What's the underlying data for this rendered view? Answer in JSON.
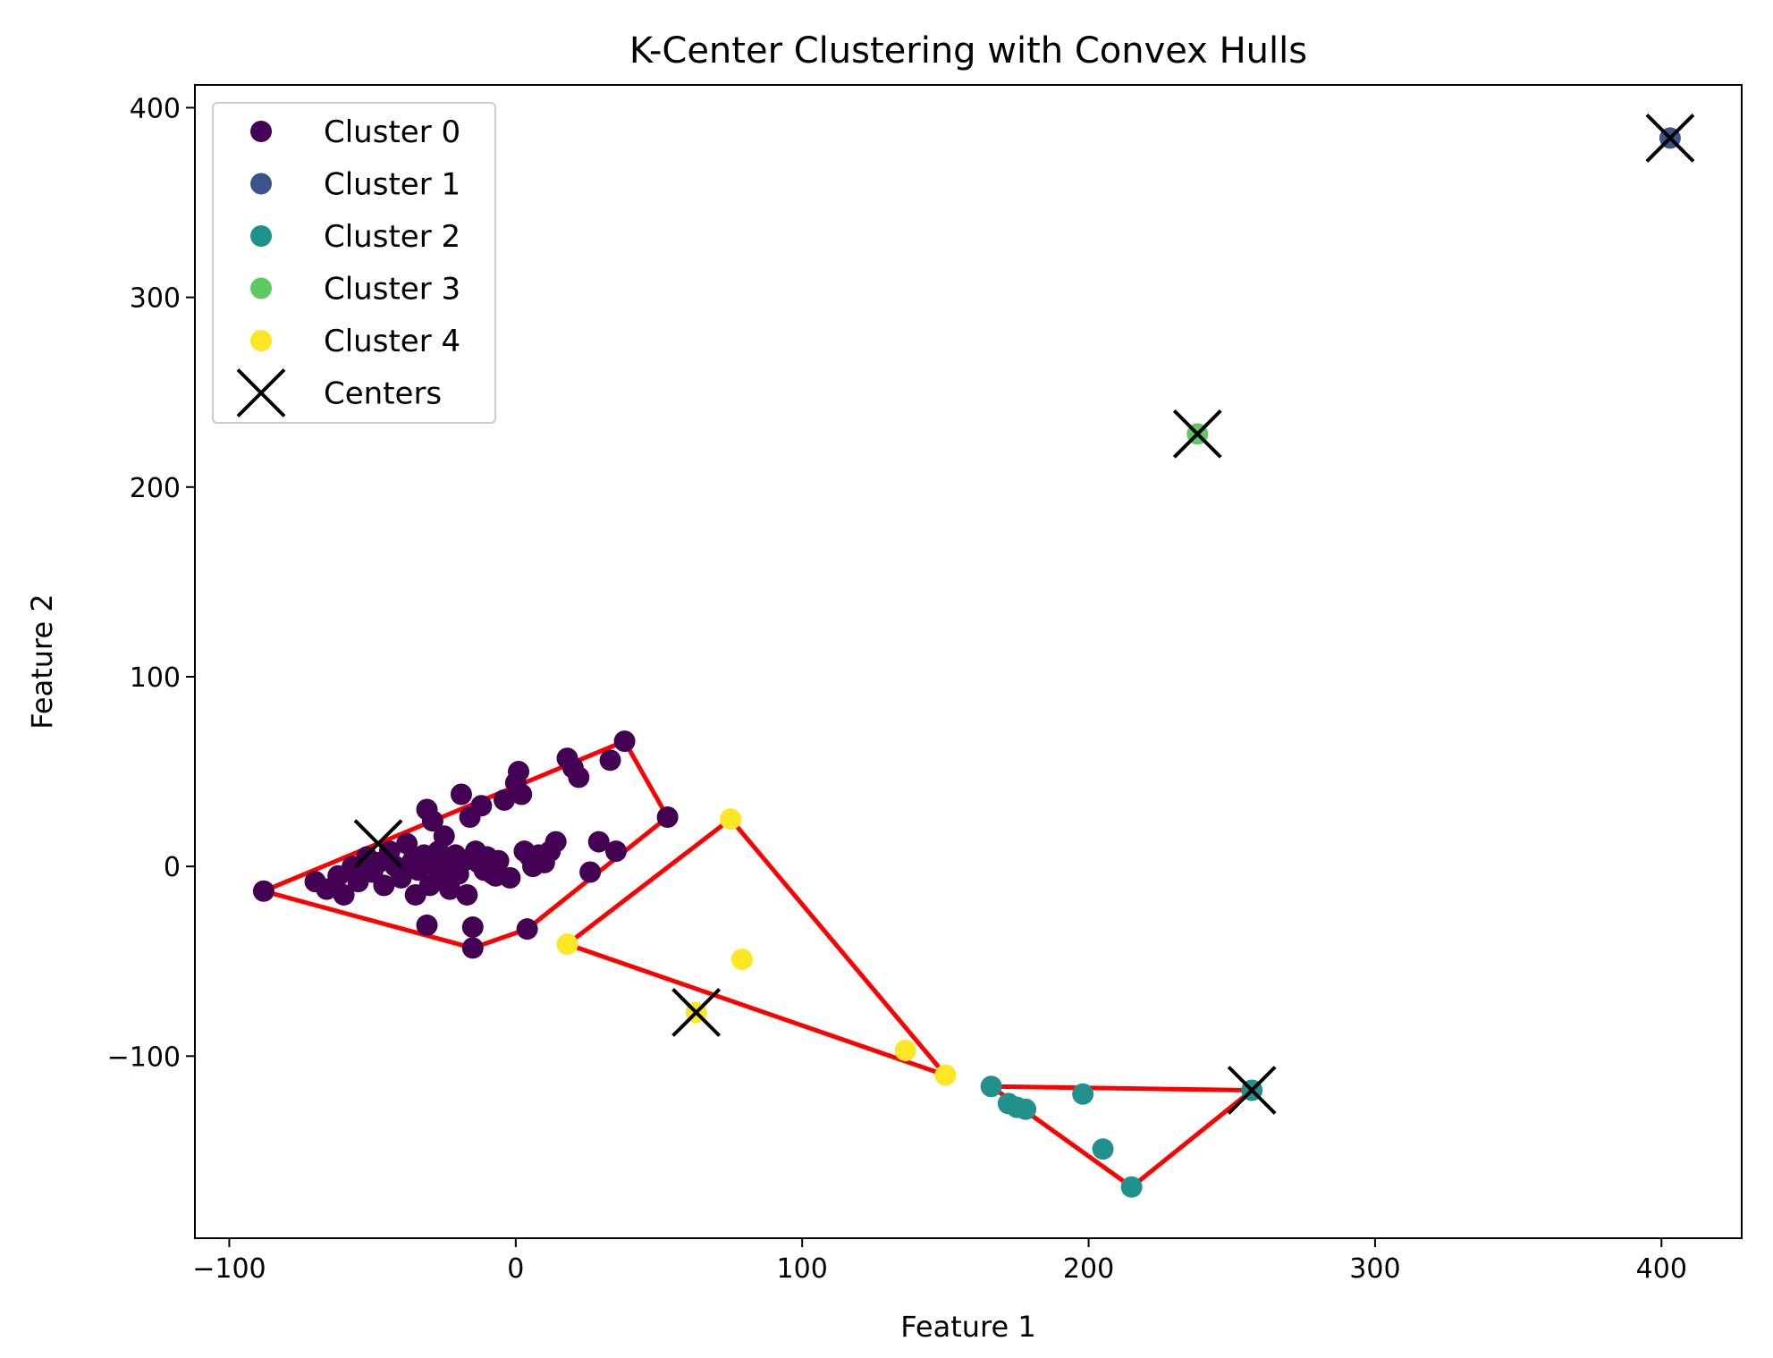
{
  "chart_data": {
    "type": "scatter",
    "title": "K-Center Clustering with Convex Hulls",
    "xlabel": "Feature 1",
    "ylabel": "Feature 2",
    "xlim": [
      -112,
      428
    ],
    "ylim": [
      -196,
      412
    ],
    "xticks": [
      -100,
      0,
      100,
      200,
      300,
      400
    ],
    "yticks": [
      -100,
      0,
      100,
      200,
      300,
      400
    ],
    "xtick_labels": [
      "−100",
      "0",
      "100",
      "200",
      "300",
      "400"
    ],
    "ytick_labels": [
      "−100",
      "0",
      "100",
      "200",
      "300",
      "400"
    ],
    "grid": false,
    "legend_placement": "top-left",
    "hull_color": "#ff0000",
    "series": [
      {
        "name": "Cluster 0",
        "color": "#440154",
        "points": [
          [
            -88,
            -13
          ],
          [
            -70,
            -8
          ],
          [
            -66,
            -12
          ],
          [
            -62,
            -5
          ],
          [
            -60,
            -15
          ],
          [
            -57,
            0
          ],
          [
            -55,
            -8
          ],
          [
            -52,
            5
          ],
          [
            -50,
            -3
          ],
          [
            -48,
            2
          ],
          [
            -46,
            -10
          ],
          [
            -44,
            8
          ],
          [
            -42,
            0
          ],
          [
            -40,
            -6
          ],
          [
            -38,
            12
          ],
          [
            -36,
            3
          ],
          [
            -35,
            -15
          ],
          [
            -34,
            -2
          ],
          [
            -32,
            6
          ],
          [
            -31,
            30
          ],
          [
            -30,
            -10
          ],
          [
            -29,
            24
          ],
          [
            -28,
            0
          ],
          [
            -27,
            8
          ],
          [
            -26,
            -5
          ],
          [
            -25,
            16
          ],
          [
            -24,
            4
          ],
          [
            -23,
            -12
          ],
          [
            -22,
            2
          ],
          [
            -21,
            6
          ],
          [
            -20,
            -4
          ],
          [
            -19,
            38
          ],
          [
            -18,
            3
          ],
          [
            -17,
            -15
          ],
          [
            -16,
            26
          ],
          [
            -15,
            -43
          ],
          [
            -15,
            -32
          ],
          [
            -14,
            8
          ],
          [
            -13,
            2
          ],
          [
            -12,
            32
          ],
          [
            -11,
            -2
          ],
          [
            -10,
            5
          ],
          [
            -9,
            0
          ],
          [
            -8,
            -4
          ],
          [
            -6,
            3
          ],
          [
            -4,
            35
          ],
          [
            -2,
            -6
          ],
          [
            0,
            44
          ],
          [
            1,
            50
          ],
          [
            2,
            38
          ],
          [
            3,
            8
          ],
          [
            4,
            -33
          ],
          [
            5,
            5
          ],
          [
            6,
            0
          ],
          [
            8,
            6
          ],
          [
            10,
            2
          ],
          [
            12,
            8
          ],
          [
            14,
            13
          ],
          [
            18,
            57
          ],
          [
            20,
            52
          ],
          [
            22,
            47
          ],
          [
            26,
            -3
          ],
          [
            29,
            13
          ],
          [
            33,
            56
          ],
          [
            35,
            8
          ],
          [
            38,
            66
          ],
          [
            53,
            26
          ],
          [
            -31,
            -31
          ],
          [
            -7,
            -5
          ]
        ]
      },
      {
        "name": "Cluster 1",
        "color": "#3b528b",
        "points": [
          [
            403,
            384
          ]
        ]
      },
      {
        "name": "Cluster 2",
        "color": "#21918c",
        "points": [
          [
            166,
            -116
          ],
          [
            172,
            -125
          ],
          [
            175,
            -127
          ],
          [
            178,
            -128
          ],
          [
            198,
            -120
          ],
          [
            205,
            -149
          ],
          [
            215,
            -169
          ],
          [
            257,
            -118
          ]
        ]
      },
      {
        "name": "Cluster 3",
        "color": "#5ec962",
        "points": [
          [
            238,
            228
          ]
        ]
      },
      {
        "name": "Cluster 4",
        "color": "#fde725",
        "points": [
          [
            75,
            25
          ],
          [
            79,
            -49
          ],
          [
            18,
            -41
          ],
          [
            63,
            -77
          ],
          [
            136,
            -97
          ],
          [
            150,
            -110
          ]
        ]
      }
    ],
    "centers": {
      "name": "Centers",
      "color": "#000000",
      "points": [
        [
          -48,
          12
        ],
        [
          403,
          384
        ],
        [
          257,
          -118
        ],
        [
          238,
          228
        ],
        [
          63,
          -77
        ]
      ]
    },
    "hulls": [
      [
        [
          -88,
          -13
        ],
        [
          38,
          66
        ],
        [
          53,
          26
        ],
        [
          4,
          -33
        ],
        [
          -15,
          -43
        ],
        [
          -88,
          -13
        ]
      ],
      [
        [
          75,
          25
        ],
        [
          18,
          -41
        ],
        [
          150,
          -110
        ],
        [
          75,
          25
        ]
      ],
      [
        [
          166,
          -116
        ],
        [
          257,
          -118
        ],
        [
          215,
          -169
        ],
        [
          166,
          -116
        ]
      ]
    ]
  }
}
